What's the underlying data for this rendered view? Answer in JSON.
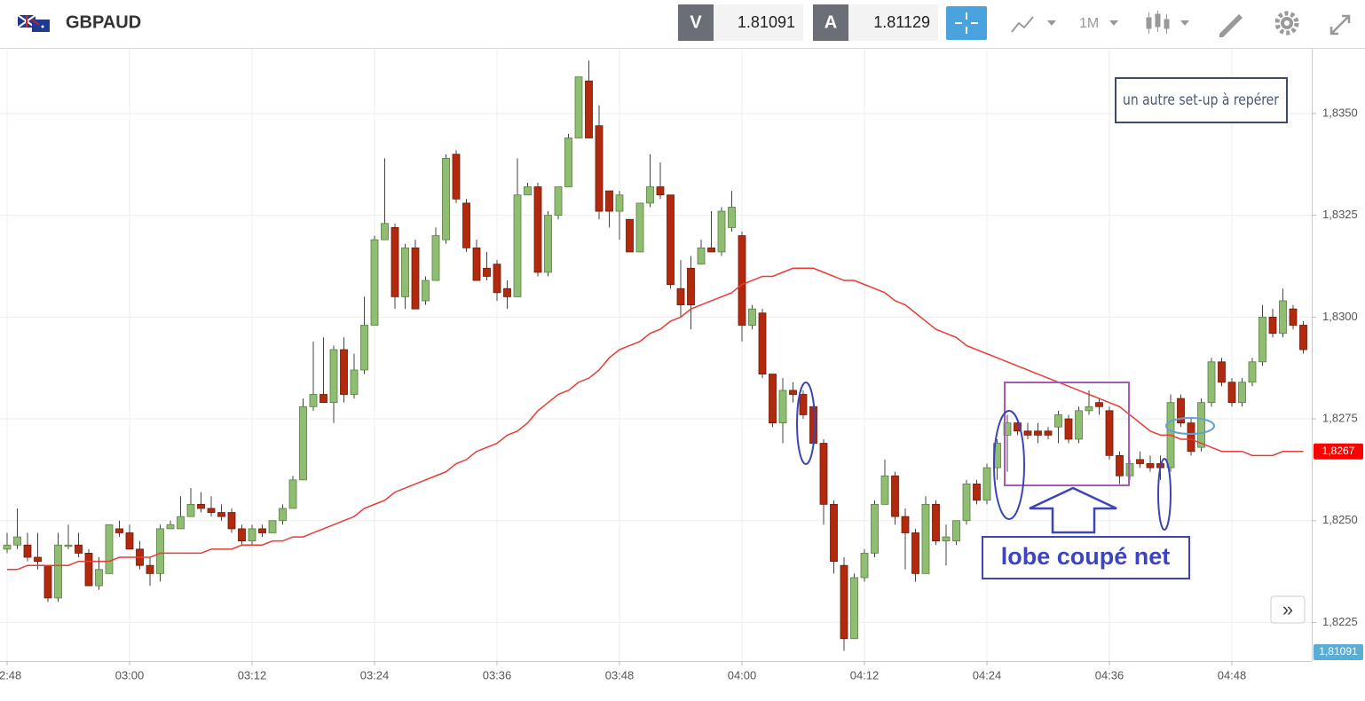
{
  "header": {
    "symbol": "GBPAUD",
    "bid_label": "V",
    "bid": "1.81091",
    "ask_label": "A",
    "ask": "1.81129",
    "timeframe": "1M"
  },
  "chart_data": {
    "type": "candlestick",
    "categories": [
      "02:48",
      null,
      null,
      null,
      null,
      null,
      null,
      null,
      null,
      null,
      null,
      null,
      "03:00",
      null,
      null,
      null,
      null,
      null,
      null,
      null,
      null,
      null,
      null,
      null,
      "03:12",
      null,
      null,
      null,
      null,
      null,
      null,
      null,
      null,
      null,
      null,
      null,
      "03:24",
      null,
      null,
      null,
      null,
      null,
      null,
      null,
      null,
      null,
      null,
      null,
      "03:36",
      null,
      null,
      null,
      null,
      null,
      null,
      null,
      null,
      null,
      null,
      null,
      "03:48",
      null,
      null,
      null,
      null,
      null,
      null,
      null,
      null,
      null,
      null,
      null,
      "04:00",
      null,
      null,
      null,
      null,
      null,
      null,
      null,
      null,
      null,
      null,
      null,
      "04:12",
      null,
      null,
      null,
      null,
      null,
      null,
      null,
      null,
      null,
      null,
      null,
      "04:24",
      null,
      null,
      null,
      null,
      null,
      null,
      null,
      null,
      null,
      null,
      null,
      "04:36",
      null,
      null,
      null,
      null,
      null,
      null,
      null,
      null,
      null,
      null,
      null,
      "04:48",
      null,
      null,
      null,
      null,
      null,
      null,
      null
    ],
    "open": [
      1.8243,
      1.8244,
      1.8244,
      1.8241,
      1.8239,
      1.8231,
      1.8244,
      1.8244,
      1.8242,
      1.8234,
      1.8237,
      1.8248,
      1.8247,
      1.8243,
      1.8239,
      1.8237,
      1.8248,
      1.8248,
      1.8251,
      1.8254,
      1.8253,
      1.8252,
      1.8252,
      1.8248,
      1.8245,
      1.8248,
      1.8247,
      1.825,
      1.8253,
      1.826,
      1.8278,
      1.8281,
      1.8279,
      1.8292,
      1.8281,
      1.8287,
      1.8298,
      1.8319,
      1.8322,
      1.8305,
      1.8317,
      1.8304,
      1.8309,
      1.8319,
      1.834,
      1.8328,
      1.8317,
      1.8312,
      1.8313,
      1.8307,
      1.8305,
      1.833,
      1.8332,
      1.8311,
      1.8325,
      1.8332,
      1.8344,
      1.8358,
      1.8347,
      1.8331,
      1.8326,
      1.8324,
      1.8316,
      1.8328,
      1.8332,
      1.833,
      1.8307,
      1.8312,
      1.8313,
      1.8317,
      1.8316,
      1.8322,
      1.832,
      1.8298,
      1.8301,
      1.8286,
      1.8274,
      1.8282,
      1.8281,
      1.8278,
      1.8269,
      1.8254,
      1.8239,
      1.8221,
      1.8236,
      1.8242,
      1.8254,
      1.8261,
      1.8251,
      1.8247,
      1.8237,
      1.8254,
      1.8245,
      1.8245,
      1.825,
      1.8259,
      1.8255,
      1.8263,
      1.8271,
      1.8274,
      1.8272,
      1.8272,
      1.8272,
      1.8273,
      1.8275,
      1.827,
      1.8277,
      1.8279,
      1.8277,
      1.8266,
      1.8261,
      1.8265,
      1.8264,
      1.8264,
      1.8263,
      1.828,
      1.8274,
      1.8268,
      1.8279,
      1.8289,
      1.8284,
      1.8279,
      1.8284,
      1.8289,
      1.83,
      1.8296,
      1.8302,
      1.8298
    ],
    "high": [
      1.8247,
      1.8253,
      1.8247,
      1.8247,
      1.8239,
      1.8247,
      1.8249,
      1.8247,
      1.8243,
      1.8241,
      1.8249,
      1.825,
      1.8249,
      1.8245,
      1.8241,
      1.8249,
      1.825,
      1.8256,
      1.8258,
      1.8257,
      1.8256,
      1.8254,
      1.8253,
      1.8249,
      1.8249,
      1.8249,
      1.825,
      1.8254,
      1.8261,
      1.828,
      1.8294,
      1.8295,
      1.8293,
      1.8295,
      1.8291,
      1.8305,
      1.832,
      1.8339,
      1.8323,
      1.8318,
      1.8319,
      1.831,
      1.8322,
      1.834,
      1.8341,
      1.8329,
      1.8319,
      1.8316,
      1.8314,
      1.8309,
      1.8339,
      1.8333,
      1.8333,
      1.8326,
      1.8332,
      1.8345,
      1.8359,
      1.8363,
      1.8352,
      1.8331,
      1.8331,
      1.8324,
      1.8328,
      1.834,
      1.8338,
      1.833,
      1.8314,
      1.8315,
      1.8319,
      1.8326,
      1.8327,
      1.8331,
      1.8321,
      1.8303,
      1.8302,
      1.8286,
      1.8285,
      1.8284,
      1.8282,
      1.8279,
      1.827,
      1.8255,
      1.8241,
      1.8237,
      1.8243,
      1.8255,
      1.8265,
      1.8262,
      1.8253,
      1.8248,
      1.8256,
      1.8255,
      1.8249,
      1.825,
      1.826,
      1.826,
      1.8264,
      1.827,
      1.8276,
      1.8275,
      1.8274,
      1.8274,
      1.8273,
      1.8277,
      1.8276,
      1.8278,
      1.8282,
      1.828,
      1.8278,
      1.8267,
      1.8265,
      1.8267,
      1.8266,
      1.8266,
      1.8281,
      1.8281,
      1.8275,
      1.828,
      1.829,
      1.829,
      1.8285,
      1.8285,
      1.829,
      1.8303,
      1.8302,
      1.8307,
      1.8303,
      1.8299
    ],
    "low": [
      1.8242,
      1.8243,
      1.824,
      1.8238,
      1.823,
      1.823,
      1.8243,
      1.8241,
      1.8234,
      1.8233,
      1.8237,
      1.8246,
      1.8243,
      1.8238,
      1.8234,
      1.8235,
      1.8248,
      1.8248,
      1.8251,
      1.8252,
      1.8251,
      1.825,
      1.8247,
      1.8244,
      1.8244,
      1.8246,
      1.8247,
      1.8249,
      1.8253,
      1.826,
      1.8277,
      1.8279,
      1.8274,
      1.8279,
      1.828,
      1.8286,
      1.8298,
      1.8319,
      1.8302,
      1.8302,
      1.8302,
      1.8303,
      1.8309,
      1.8318,
      1.8328,
      1.8316,
      1.8309,
      1.8309,
      1.8304,
      1.8302,
      1.8305,
      1.833,
      1.831,
      1.831,
      1.8324,
      1.8332,
      1.8344,
      1.8344,
      1.8324,
      1.8322,
      1.8319,
      1.8316,
      1.8316,
      1.8327,
      1.8329,
      1.8307,
      1.83,
      1.8297,
      1.8313,
      1.8316,
      1.8315,
      1.8321,
      1.8294,
      1.8297,
      1.8285,
      1.8273,
      1.8269,
      1.8279,
      1.8275,
      1.8269,
      1.8249,
      1.8237,
      1.8218,
      1.8221,
      1.8235,
      1.8241,
      1.8254,
      1.8249,
      1.8238,
      1.8235,
      1.8237,
      1.8244,
      1.8239,
      1.8244,
      1.8249,
      1.8254,
      1.8254,
      1.826,
      1.8262,
      1.8271,
      1.827,
      1.8269,
      1.827,
      1.8269,
      1.8269,
      1.8269,
      1.8276,
      1.8276,
      1.8265,
      1.8259,
      1.826,
      1.8263,
      1.8262,
      1.826,
      1.8262,
      1.8273,
      1.8266,
      1.8267,
      1.8278,
      1.8283,
      1.8278,
      1.8278,
      1.8283,
      1.8288,
      1.8295,
      1.8295,
      1.8297,
      1.8291
    ],
    "close": [
      1.8244,
      1.8246,
      1.8241,
      1.824,
      1.8231,
      1.8244,
      1.8244,
      1.8242,
      1.8234,
      1.8238,
      1.8249,
      1.8247,
      1.8243,
      1.8239,
      1.8237,
      1.8248,
      1.8249,
      1.8251,
      1.8254,
      1.8253,
      1.8252,
      1.8251,
      1.8248,
      1.8245,
      1.8248,
      1.8247,
      1.825,
      1.8253,
      1.826,
      1.8278,
      1.8281,
      1.8279,
      1.8292,
      1.8281,
      1.8287,
      1.8298,
      1.8319,
      1.8323,
      1.8305,
      1.8317,
      1.8302,
      1.8309,
      1.832,
      1.8339,
      1.8329,
      1.8317,
      1.8309,
      1.831,
      1.8306,
      1.8305,
      1.833,
      1.8332,
      1.8311,
      1.8325,
      1.8332,
      1.8344,
      1.8359,
      1.8344,
      1.8326,
      1.8326,
      1.833,
      1.8316,
      1.8328,
      1.8332,
      1.833,
      1.8308,
      1.8303,
      1.8303,
      1.8317,
      1.8316,
      1.8326,
      1.8327,
      1.8298,
      1.8302,
      1.8286,
      1.8274,
      1.8282,
      1.8281,
      1.8276,
      1.8269,
      1.8254,
      1.824,
      1.8221,
      1.8236,
      1.8242,
      1.8254,
      1.8261,
      1.8251,
      1.8247,
      1.8237,
      1.8254,
      1.8245,
      1.8246,
      1.825,
      1.8259,
      1.8255,
      1.8263,
      1.8269,
      1.8274,
      1.8272,
      1.8271,
      1.8271,
      1.8271,
      1.8276,
      1.827,
      1.8277,
      1.8278,
      1.8278,
      1.8266,
      1.8261,
      1.8264,
      1.8264,
      1.8263,
      1.8263,
      1.8279,
      1.8274,
      1.8267,
      1.8279,
      1.8289,
      1.8284,
      1.8279,
      1.8284,
      1.8289,
      1.83,
      1.8296,
      1.8304,
      1.8298,
      1.8292
    ],
    "up_color": "#8fbe73",
    "down_color": "#b3290d",
    "ma": {
      "color": "#ea3b34",
      "values": [
        1.8238,
        1.8238,
        1.8239,
        1.8239,
        1.8239,
        1.8239,
        1.8239,
        1.824,
        1.824,
        1.824,
        1.824,
        1.8241,
        1.8241,
        1.8241,
        1.8241,
        1.8242,
        1.8242,
        1.8242,
        1.8242,
        1.8242,
        1.8243,
        1.8243,
        1.8243,
        1.8244,
        1.8244,
        1.8244,
        1.8245,
        1.8245,
        1.8246,
        1.8246,
        1.8247,
        1.8248,
        1.8249,
        1.825,
        1.8251,
        1.8253,
        1.8254,
        1.8255,
        1.8257,
        1.8258,
        1.8259,
        1.826,
        1.8261,
        1.8262,
        1.8264,
        1.8265,
        1.8267,
        1.8268,
        1.8269,
        1.8271,
        1.8272,
        1.8274,
        1.8277,
        1.8279,
        1.8281,
        1.8282,
        1.8284,
        1.8285,
        1.8287,
        1.829,
        1.8292,
        1.8293,
        1.8294,
        1.8296,
        1.8297,
        1.8299,
        1.83,
        1.8302,
        1.8303,
        1.8304,
        1.8305,
        1.8306,
        1.8308,
        1.8309,
        1.831,
        1.831,
        1.8311,
        1.8312,
        1.8312,
        1.8312,
        1.8311,
        1.831,
        1.8309,
        1.8309,
        1.8308,
        1.8307,
        1.8306,
        1.8304,
        1.8303,
        1.8301,
        1.8299,
        1.8297,
        1.8296,
        1.8295,
        1.8293,
        1.8292,
        1.8291,
        1.829,
        1.8289,
        1.8288,
        1.8287,
        1.8286,
        1.8285,
        1.8284,
        1.8283,
        1.8282,
        1.8281,
        1.828,
        1.8279,
        1.8278,
        1.8276,
        1.8274,
        1.8272,
        1.8271,
        1.8271,
        1.827,
        1.827,
        1.8269,
        1.8268,
        1.8267,
        1.8267,
        1.8267,
        1.8266,
        1.8266,
        1.8266,
        1.8267,
        1.8267,
        1.8267
      ]
    },
    "ylim": [
      1.82155,
      1.83659
    ],
    "yticks": [
      {
        "value": 1.8225,
        "label": "1,8225"
      },
      {
        "value": 1.825,
        "label": "1,8250"
      },
      {
        "value": 1.8275,
        "label": "1,8275"
      },
      {
        "value": 1.83,
        "label": "1,8300"
      },
      {
        "value": 1.8325,
        "label": "1,8325"
      },
      {
        "value": 1.835,
        "label": "1,8350"
      }
    ],
    "grid": true,
    "price_tags": [
      {
        "value": 1.8267,
        "label": "1,8267",
        "color": "#ff0000"
      },
      {
        "value": 1.81091,
        "label": "1,81091",
        "color": "#5aaed6"
      }
    ],
    "annotations": [
      "un autre set-up à repérer",
      "lobe coupé net"
    ]
  }
}
